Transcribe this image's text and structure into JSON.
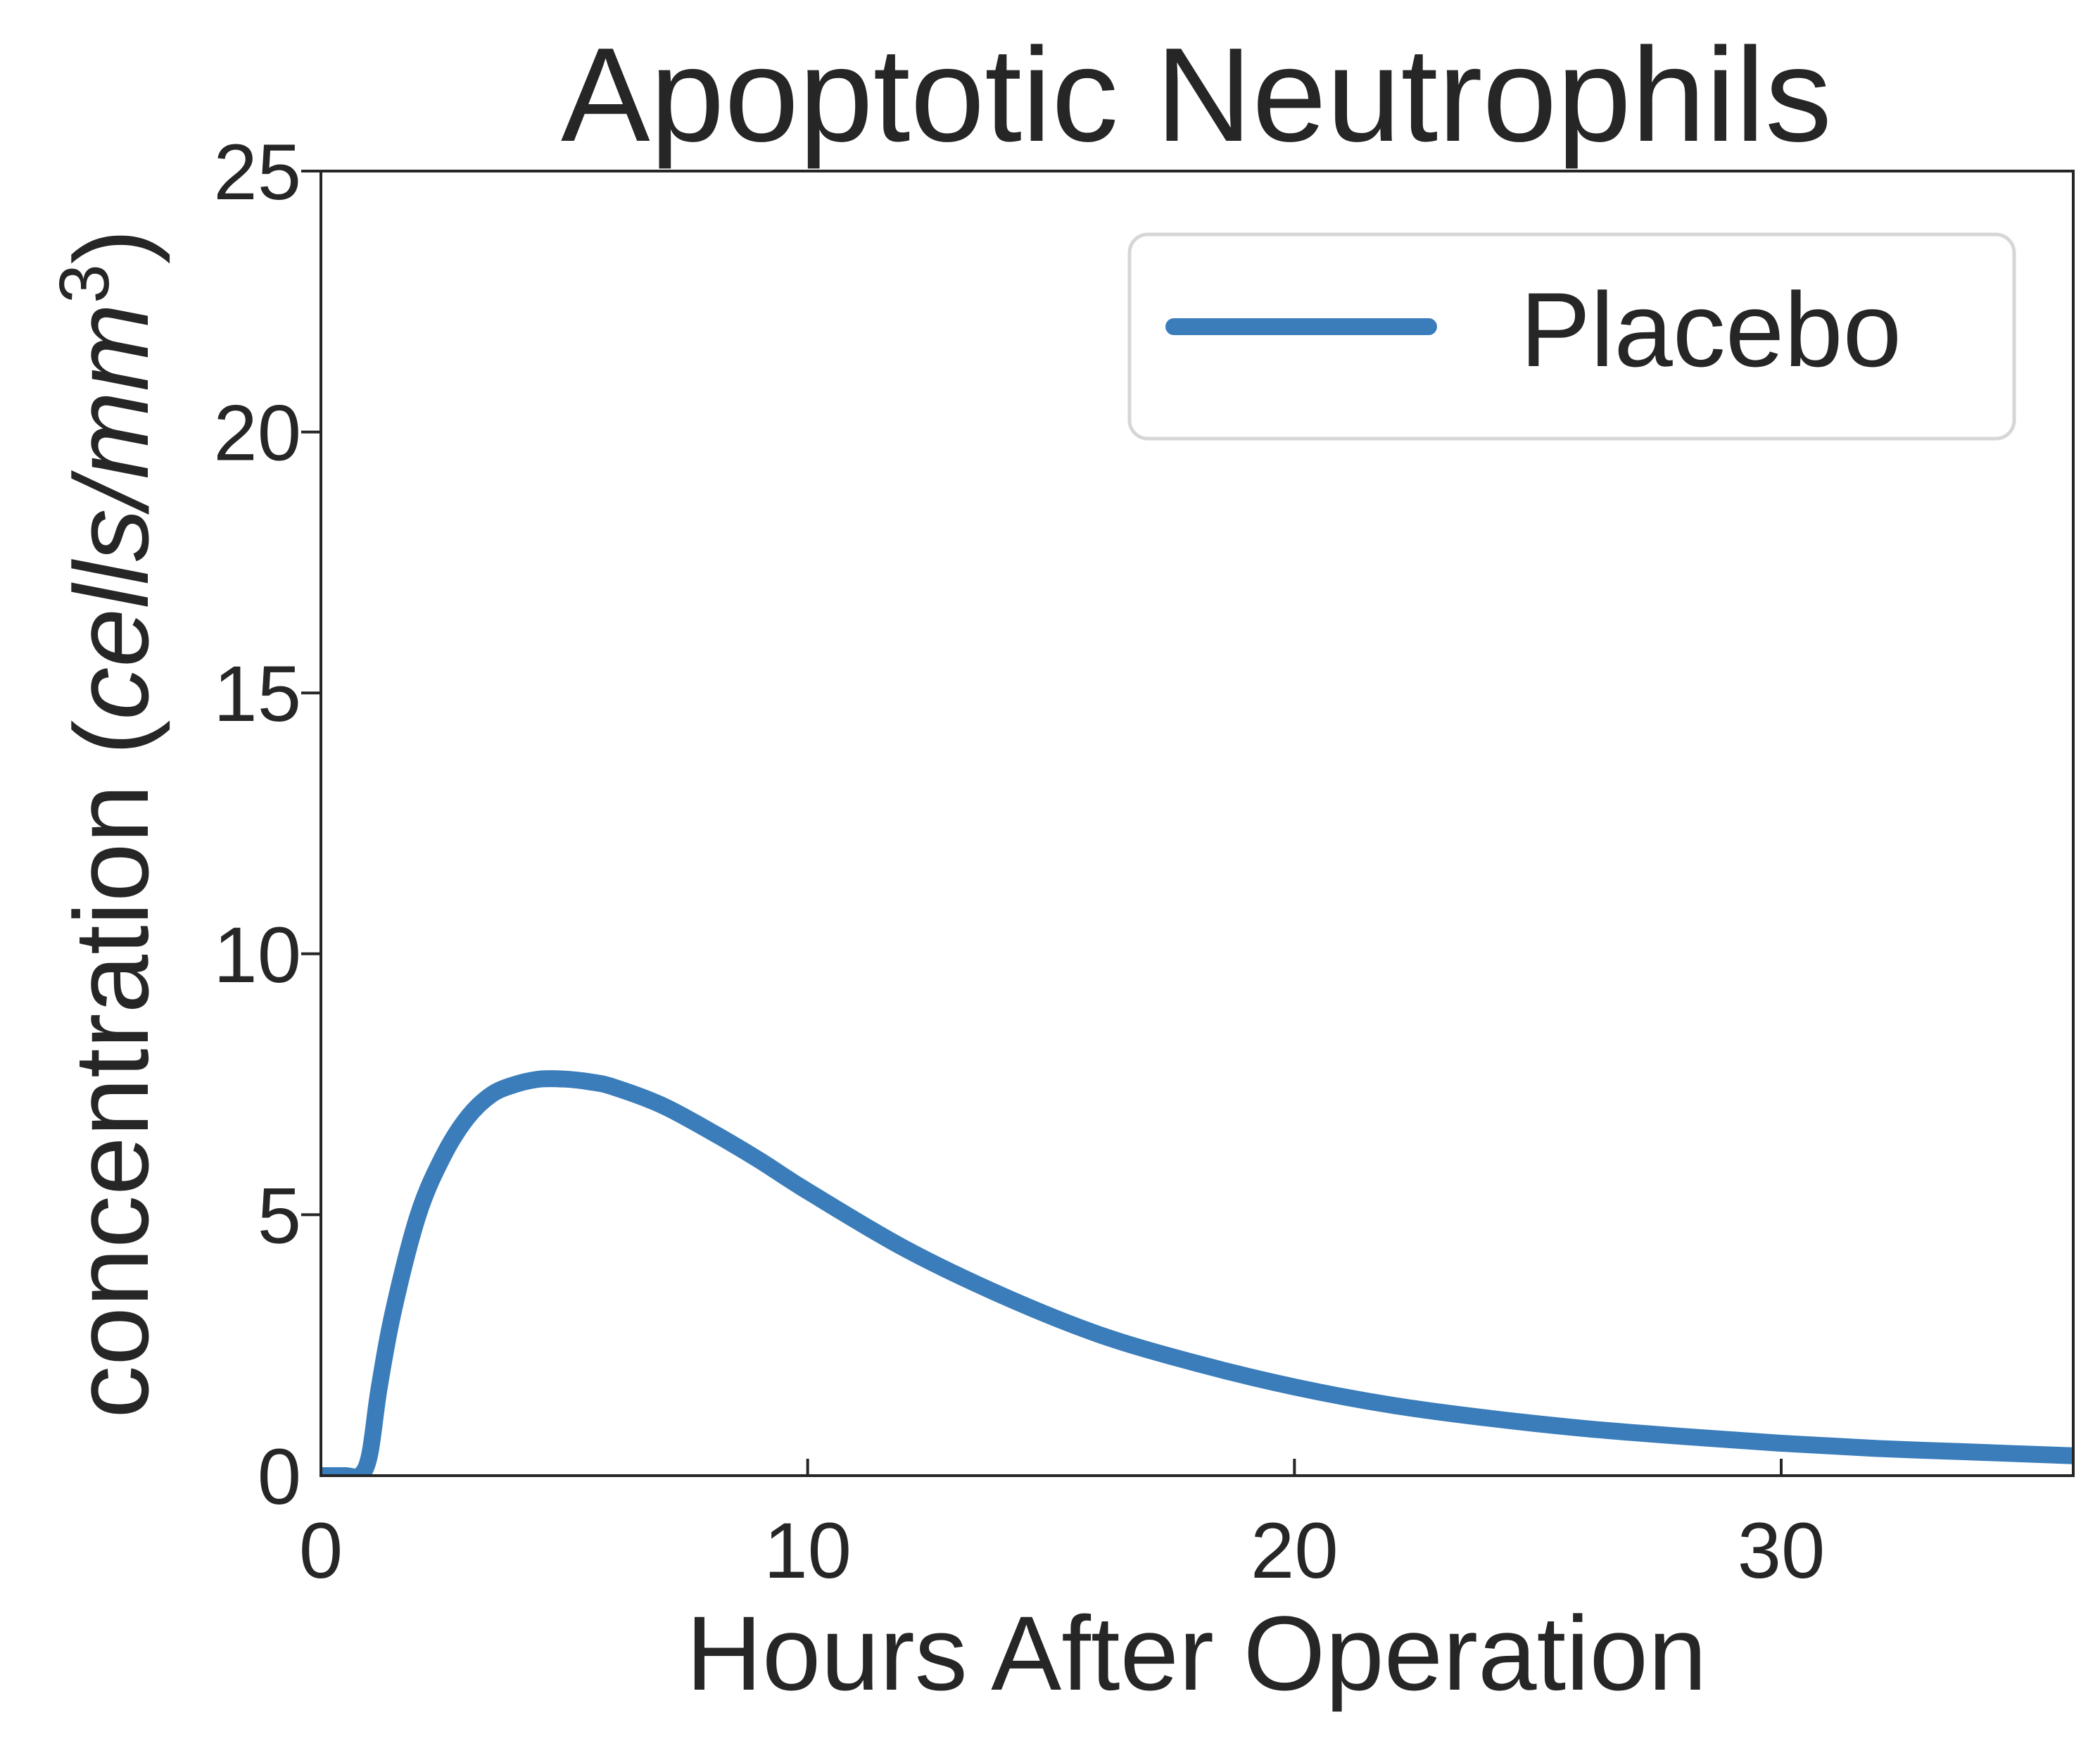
{
  "chart_data": {
    "type": "line",
    "title": "Apoptotic Neutrophils",
    "xlabel": "Hours After Operation",
    "ylabel": "concentration (cells/mm³)",
    "ylabel_main": "concentration (",
    "ylabel_unit": "cells/mm",
    "ylabel_sup": "3",
    "ylabel_close": ")",
    "xlim": [
      0,
      36
    ],
    "ylim": [
      0,
      25
    ],
    "xticks": [
      0,
      10,
      20,
      30
    ],
    "yticks": [
      0,
      5,
      10,
      15,
      20,
      25
    ],
    "grid": false,
    "legend_position": "top-right",
    "series": [
      {
        "name": "Placebo",
        "color": "#3a7dba",
        "x": [
          0,
          0.5,
          0.8,
          1.0,
          1.2,
          1.5,
          2.0,
          2.5,
          3.0,
          3.5,
          4.0,
          4.5,
          5.0,
          5.5,
          6.0,
          7.0,
          8.0,
          9.0,
          10.0,
          12.0,
          14.0,
          16.0,
          18.0,
          20.0,
          22.0,
          24.0,
          26.0,
          28.0,
          30.0,
          32.0,
          34.0,
          36.0
        ],
        "y": [
          0,
          0,
          0,
          0.4,
          1.7,
          3.2,
          5.0,
          6.1,
          6.85,
          7.3,
          7.5,
          7.6,
          7.6,
          7.55,
          7.45,
          7.1,
          6.6,
          6.05,
          5.45,
          4.35,
          3.45,
          2.7,
          2.15,
          1.7,
          1.35,
          1.1,
          0.9,
          0.75,
          0.62,
          0.52,
          0.45,
          0.38
        ]
      }
    ]
  }
}
